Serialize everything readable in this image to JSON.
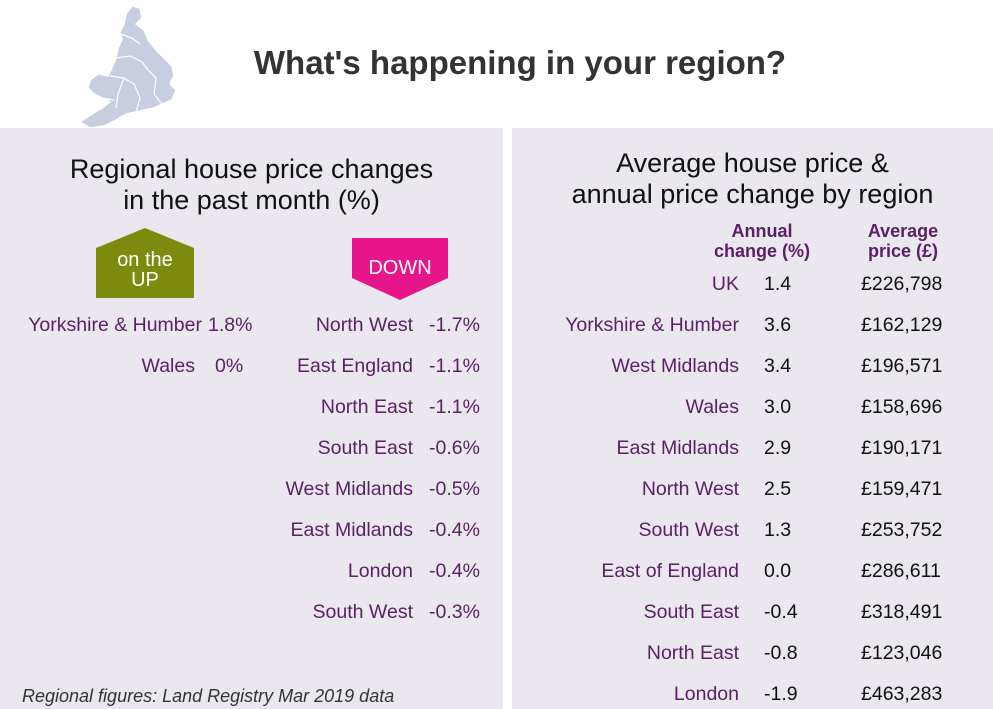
{
  "title": "What's happening in your region?",
  "map_icon": "england-wales-map",
  "colors": {
    "panel_bg": "#ebe7ee",
    "region_text": "#5a2166",
    "up_badge": "#7c8a0e",
    "down_badge": "#e6168a"
  },
  "left_panel": {
    "title_line1": "Regional house price changes",
    "title_line2": "in the past month (%)",
    "up_label_line1": "on the",
    "up_label_line2": "UP",
    "down_label": "DOWN",
    "up_rows": [
      {
        "region": "Yorkshire & Humber",
        "value": "1.8%"
      },
      {
        "region": "Wales",
        "value": "0%"
      }
    ],
    "down_rows": [
      {
        "region": "North West",
        "value": "-1.7%"
      },
      {
        "region": "East England",
        "value": "-1.1%"
      },
      {
        "region": "North East",
        "value": "-1.1%"
      },
      {
        "region": "South East",
        "value": "-0.6%"
      },
      {
        "region": "West Midlands",
        "value": "-0.5%"
      },
      {
        "region": "East Midlands",
        "value": "-0.4%"
      },
      {
        "region": "London",
        "value": "-0.4%"
      },
      {
        "region": "South West",
        "value": "-0.3%"
      }
    ],
    "note": "Regional figures: Land Registry Mar 2019 data"
  },
  "right_panel": {
    "title_line1": "Average house price &",
    "title_line2": "annual price change by region",
    "col_annual_line1": "Annual",
    "col_annual_line2": "change (%)",
    "col_avg_line1": "Average",
    "col_avg_line2": "price (£)",
    "rows": [
      {
        "region": "UK",
        "annual": "1.4",
        "price": "£226,798"
      },
      {
        "region": "Yorkshire & Humber",
        "annual": "3.6",
        "price": "£162,129"
      },
      {
        "region": "West Midlands",
        "annual": "3.4",
        "price": "£196,571"
      },
      {
        "region": "Wales",
        "annual": "3.0",
        "price": "£158,696"
      },
      {
        "region": "East Midlands",
        "annual": "2.9",
        "price": "£190,171"
      },
      {
        "region": "North West",
        "annual": "2.5",
        "price": "£159,471"
      },
      {
        "region": "South West",
        "annual": "1.3",
        "price": "£253,752"
      },
      {
        "region": "East of England",
        "annual": "0.0",
        "price": "£286,611"
      },
      {
        "region": "South East",
        "annual": "-0.4",
        "price": "£318,491"
      },
      {
        "region": "North East",
        "annual": "-0.8",
        "price": "£123,046"
      },
      {
        "region": "London",
        "annual": "-1.9",
        "price": "£463,283"
      }
    ]
  }
}
